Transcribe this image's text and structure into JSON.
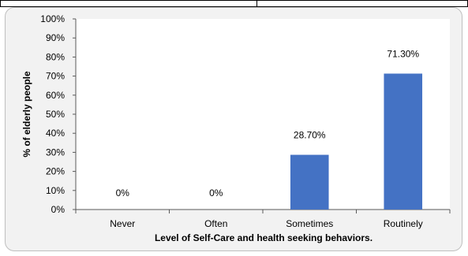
{
  "chart_data": {
    "type": "bar",
    "categories": [
      "Never",
      "Often",
      "Sometimes",
      "Routinely"
    ],
    "values": [
      0,
      0,
      28.7,
      71.3
    ],
    "data_labels": [
      "0%",
      "0%",
      "28.70%",
      "71.30%"
    ],
    "title": "",
    "xlabel": "Level of Self-Care and health seeking behaviors.",
    "ylabel": "% of elderly people",
    "ylim": [
      0,
      100
    ],
    "y_ticks": [
      "0%",
      "10%",
      "20%",
      "30%",
      "40%",
      "50%",
      "60%",
      "70%",
      "80%",
      "90%",
      "100%"
    ],
    "bar_color": "#4472c4",
    "plot_background": "#ffffff",
    "frame_background": "#f2f2f2",
    "grid": false,
    "legend": "none"
  }
}
